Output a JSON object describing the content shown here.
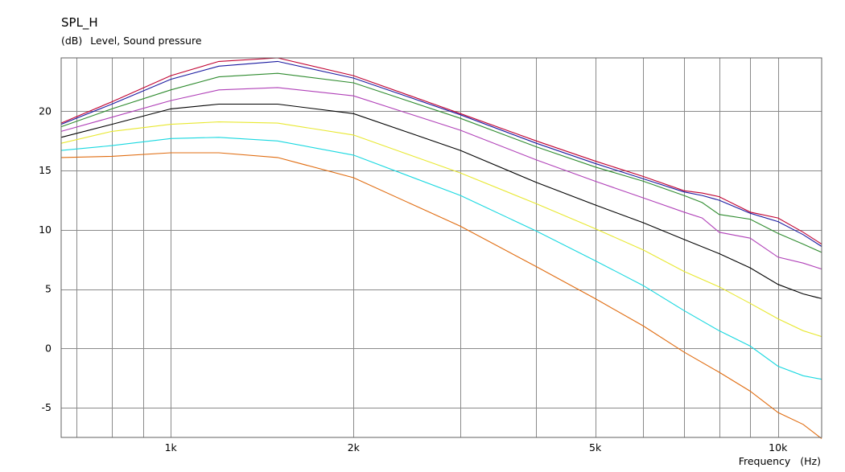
{
  "chart_data": {
    "type": "line",
    "title": "SPL_H",
    "subtitle_unit": "(dB)",
    "subtitle": "Level, Sound pressure",
    "xlabel": "Frequency",
    "xlabel_unit": "(Hz)",
    "x_scale": "log",
    "xlim": [
      660,
      11800
    ],
    "ylim": [
      -7.5,
      24.5
    ],
    "grid": true,
    "legend": "none",
    "x_tick_labels": [
      {
        "value": 1000,
        "label": "1k"
      },
      {
        "value": 2000,
        "label": "2k"
      },
      {
        "value": 5000,
        "label": "5k"
      },
      {
        "value": 10000,
        "label": "10k"
      }
    ],
    "x_minor_grid": [
      700,
      800,
      900,
      1000,
      2000,
      3000,
      4000,
      5000,
      6000,
      7000,
      8000,
      9000,
      10000
    ],
    "y_ticks": [
      20,
      15,
      10,
      5,
      0,
      -5
    ],
    "series": [
      {
        "color": "#c00030",
        "x": [
          660,
          800,
          1000,
          1200,
          1500,
          2000,
          3000,
          4000,
          5000,
          6000,
          7000,
          7500,
          8000,
          9000,
          10000,
          11000,
          11800
        ],
        "y": [
          19.0,
          20.8,
          23.0,
          24.2,
          24.5,
          23.0,
          19.8,
          17.5,
          15.8,
          14.5,
          13.3,
          13.1,
          12.8,
          11.5,
          11.0,
          9.8,
          8.8
        ]
      },
      {
        "color": "#1a1aa0",
        "x": [
          660,
          800,
          1000,
          1200,
          1500,
          2000,
          3000,
          4000,
          5000,
          6000,
          7000,
          7500,
          8000,
          9000,
          10000,
          11000,
          11800
        ],
        "y": [
          18.9,
          20.6,
          22.7,
          23.8,
          24.2,
          22.8,
          19.7,
          17.3,
          15.6,
          14.3,
          13.2,
          12.9,
          12.5,
          11.4,
          10.7,
          9.6,
          8.6
        ]
      },
      {
        "color": "#2e8b2e",
        "x": [
          660,
          800,
          1000,
          1200,
          1500,
          2000,
          3000,
          4000,
          5000,
          6000,
          7000,
          7500,
          8000,
          9000,
          10000,
          11000,
          11800
        ],
        "y": [
          18.7,
          20.2,
          21.8,
          22.9,
          23.2,
          22.4,
          19.4,
          17.0,
          15.3,
          14.1,
          12.9,
          12.3,
          11.3,
          10.9,
          9.7,
          8.8,
          8.1
        ]
      },
      {
        "color": "#b040b8",
        "x": [
          660,
          800,
          1000,
          1200,
          1500,
          2000,
          3000,
          4000,
          5000,
          6000,
          7000,
          7500,
          8000,
          9000,
          10000,
          11000,
          11800
        ],
        "y": [
          18.3,
          19.5,
          20.9,
          21.8,
          22.0,
          21.3,
          18.4,
          15.9,
          14.1,
          12.7,
          11.5,
          11.0,
          9.8,
          9.3,
          7.7,
          7.2,
          6.7
        ]
      },
      {
        "color": "#000000",
        "x": [
          660,
          800,
          1000,
          1200,
          1500,
          2000,
          3000,
          4000,
          5000,
          6000,
          7000,
          8000,
          9000,
          10000,
          11000,
          11800
        ],
        "y": [
          17.8,
          18.9,
          20.2,
          20.6,
          20.6,
          19.8,
          16.7,
          14.0,
          12.1,
          10.6,
          9.2,
          8.0,
          6.8,
          5.4,
          4.6,
          4.2
        ]
      },
      {
        "color": "#e8e830",
        "x": [
          660,
          800,
          1000,
          1200,
          1500,
          2000,
          3000,
          4000,
          5000,
          6000,
          7000,
          8000,
          9000,
          10000,
          11000,
          11800
        ],
        "y": [
          17.3,
          18.3,
          18.9,
          19.1,
          19.0,
          18.0,
          14.8,
          12.2,
          10.1,
          8.3,
          6.5,
          5.2,
          3.8,
          2.5,
          1.5,
          1.0
        ]
      },
      {
        "color": "#18d8e0",
        "x": [
          660,
          800,
          1000,
          1200,
          1500,
          2000,
          3000,
          4000,
          5000,
          6000,
          7000,
          8000,
          9000,
          10000,
          11000,
          11800
        ],
        "y": [
          16.7,
          17.1,
          17.7,
          17.8,
          17.5,
          16.3,
          12.9,
          9.9,
          7.4,
          5.3,
          3.2,
          1.5,
          0.2,
          -1.5,
          -2.3,
          -2.6
        ]
      },
      {
        "color": "#e06c10",
        "x": [
          660,
          800,
          1000,
          1200,
          1500,
          2000,
          3000,
          4000,
          5000,
          6000,
          7000,
          8000,
          9000,
          10000,
          11000,
          11800
        ],
        "y": [
          16.1,
          16.2,
          16.5,
          16.5,
          16.1,
          14.4,
          10.3,
          6.9,
          4.2,
          1.9,
          -0.3,
          -2.0,
          -3.6,
          -5.4,
          -6.4,
          -7.6
        ]
      }
    ]
  }
}
